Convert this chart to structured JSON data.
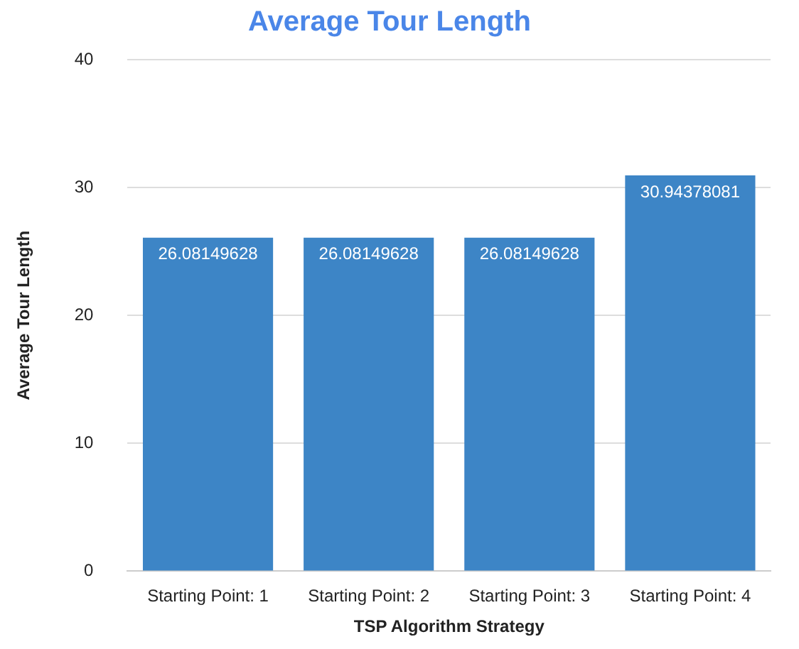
{
  "chart_data": {
    "type": "bar",
    "title": "Average Tour Length",
    "xlabel": "TSP Algorithm Strategy",
    "ylabel": "Average Tour Length",
    "categories": [
      "Starting Point: 1",
      "Starting Point: 2",
      "Starting Point: 3",
      "Starting Point: 4"
    ],
    "values": [
      26.08149628,
      26.08149628,
      26.08149628,
      30.94378081
    ],
    "color": "#3d85c6",
    "ylim": [
      0,
      40
    ],
    "yticks": [
      0,
      10,
      20,
      30,
      40
    ],
    "grid": "y",
    "data_labels": true
  }
}
